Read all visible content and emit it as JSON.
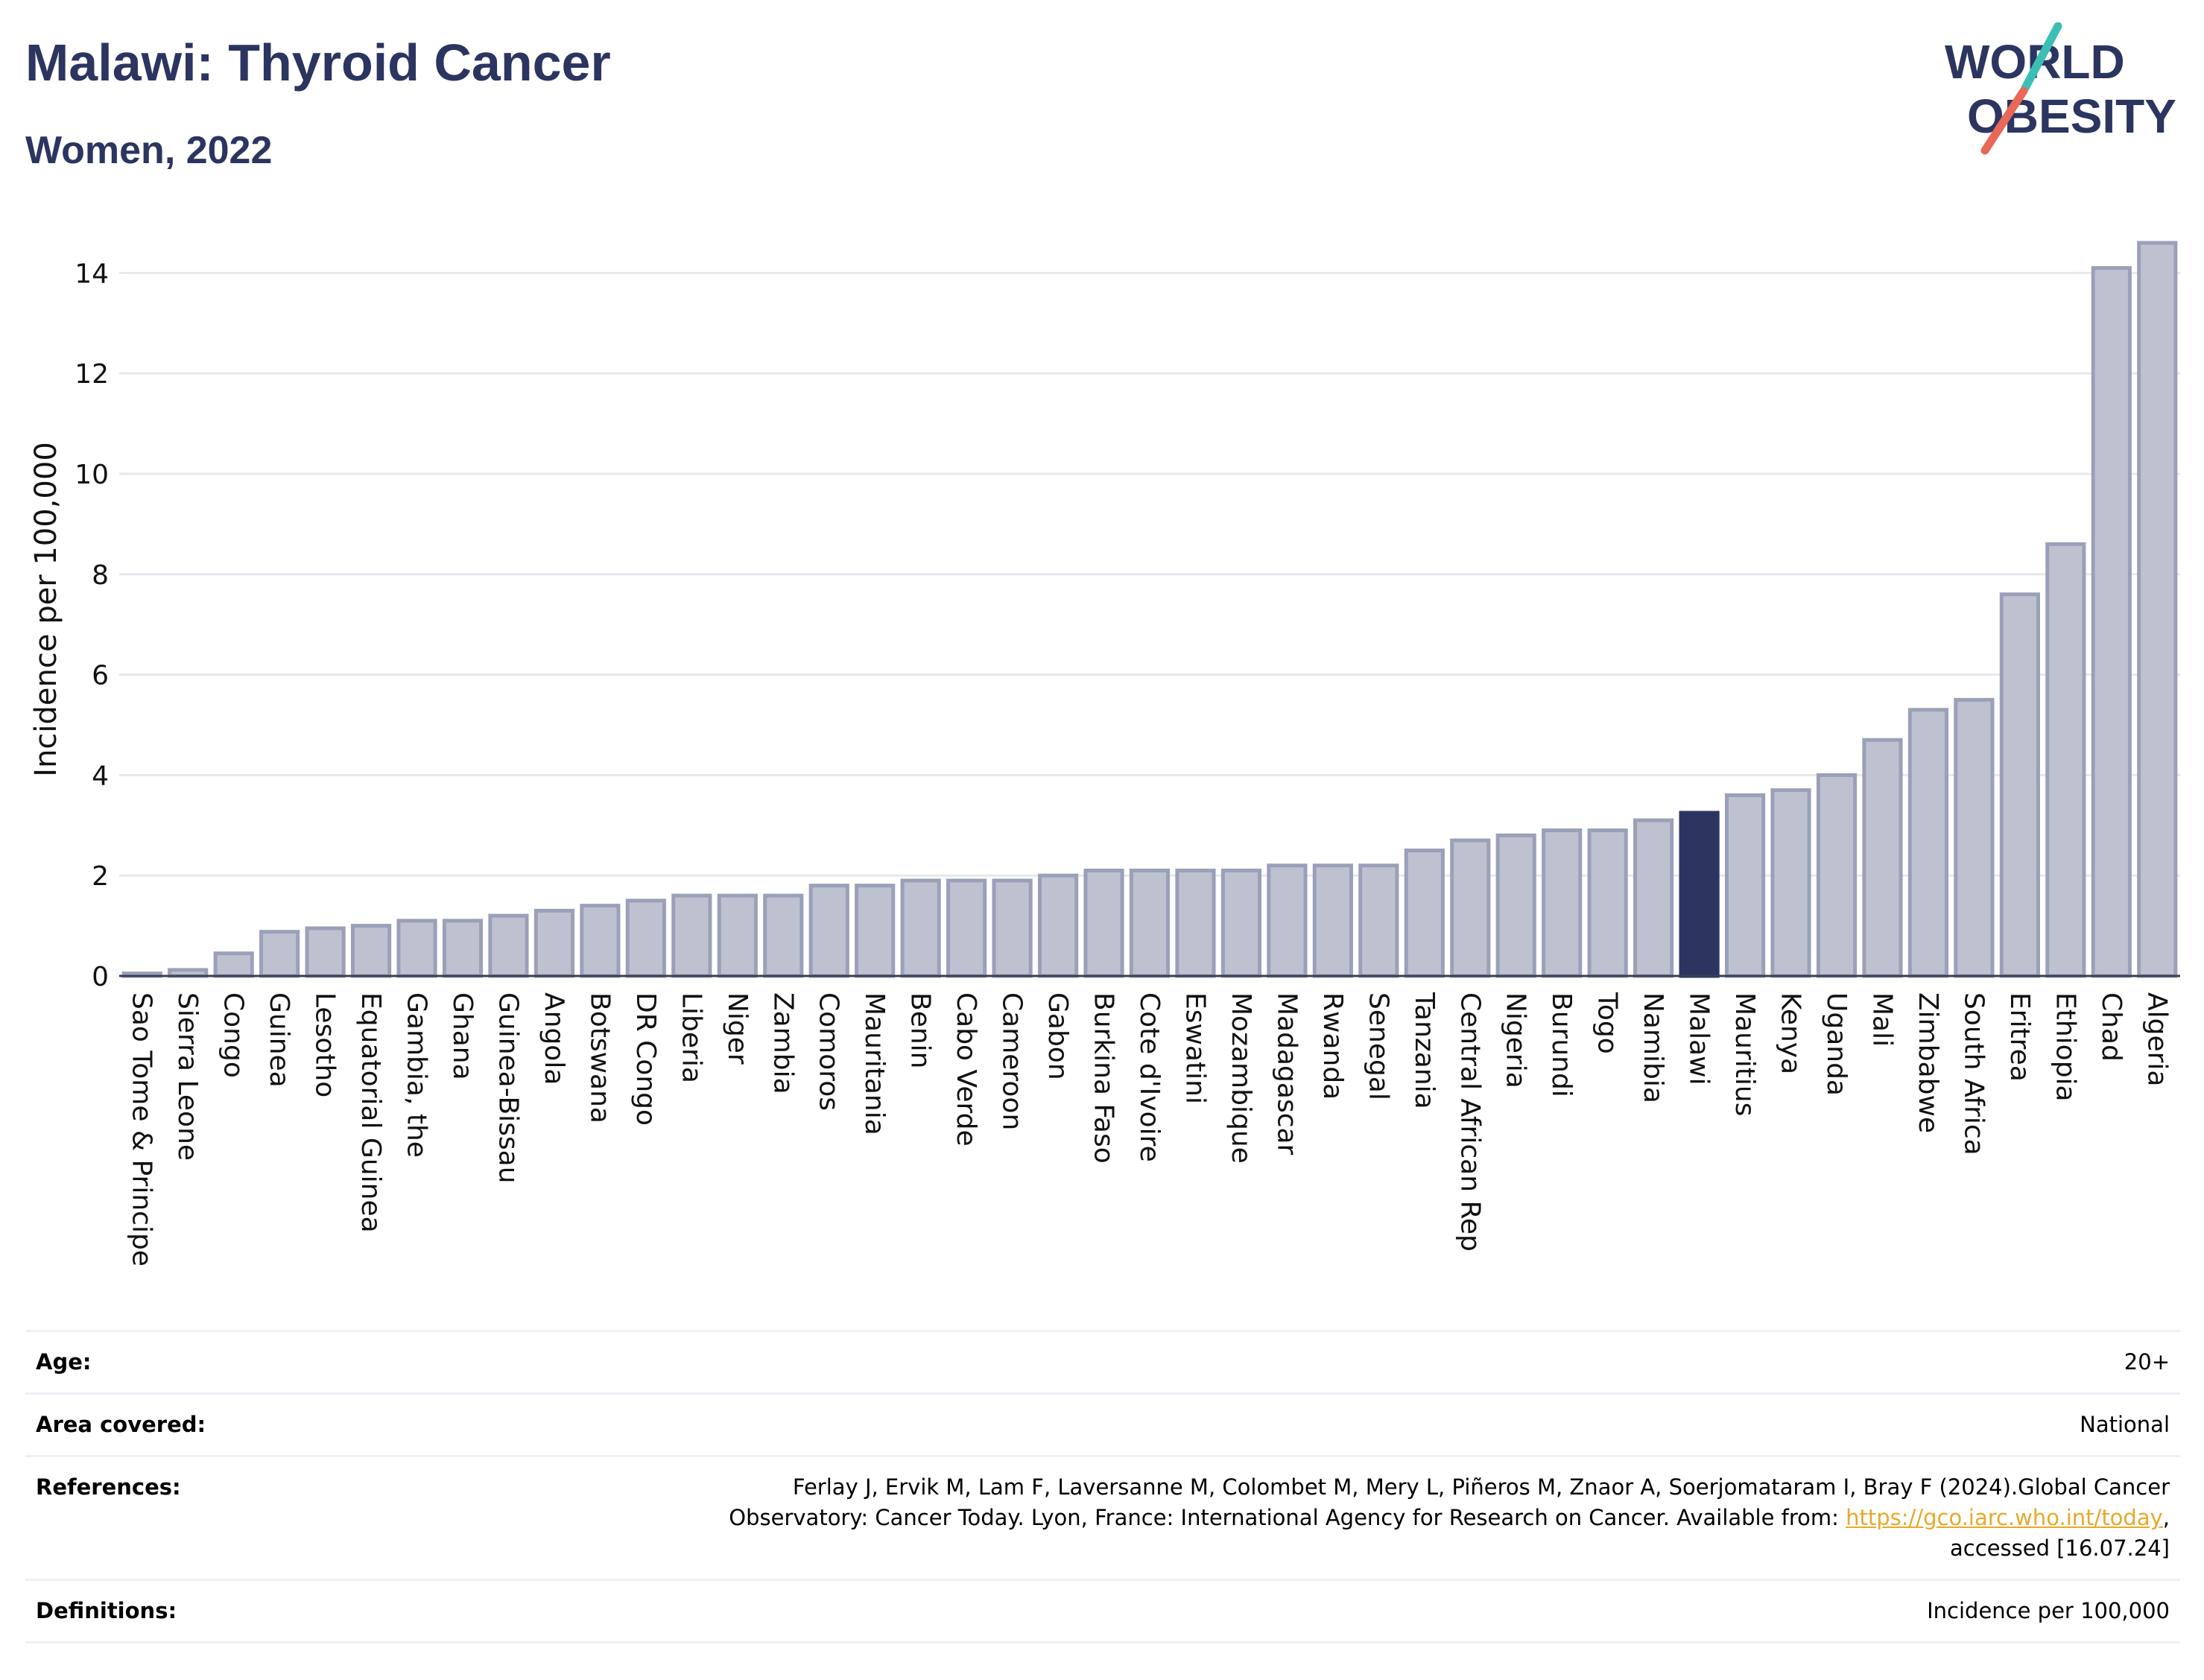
{
  "header": {
    "title": "Malawi: Thyroid Cancer",
    "subtitle": "Women, 2022"
  },
  "logo": {
    "line1": "WORLD",
    "line2": "OBESITY",
    "colors": {
      "text": "#2b3560",
      "slash_teal": "#3bbfb4",
      "slash_coral": "#e8685a"
    }
  },
  "chart_data": {
    "type": "bar",
    "ylabel": "Incidence per 100,000",
    "xlabel": "",
    "ylim": [
      0,
      14.6
    ],
    "yticks": [
      0,
      2,
      4,
      6,
      8,
      10,
      12,
      14
    ],
    "grid": true,
    "highlight": "Malawi",
    "colors": {
      "bar": "#bec2d0",
      "bar_border": "#9aa0b8",
      "highlight": "#2b3560"
    },
    "categories": [
      "Sao Tome & Principe",
      "Sierra Leone",
      "Congo",
      "Guinea",
      "Lesotho",
      "Equatorial Guinea",
      "Gambia, the",
      "Ghana",
      "Guinea-Bissau",
      "Angola",
      "Botswana",
      "DR Congo",
      "Liberia",
      "Niger",
      "Zambia",
      "Comoros",
      "Mauritania",
      "Benin",
      "Cabo Verde",
      "Cameroon",
      "Gabon",
      "Burkina Faso",
      "Cote d'Ivoire",
      "Eswatini",
      "Mozambique",
      "Madagascar",
      "Rwanda",
      "Senegal",
      "Tanzania",
      "Central African Rep",
      "Nigeria",
      "Burundi",
      "Togo",
      "Namibia",
      "Malawi",
      "Mauritius",
      "Kenya",
      "Uganda",
      "Mali",
      "Zimbabwe",
      "South Africa",
      "Eritrea",
      "Ethiopia",
      "Chad",
      "Algeria"
    ],
    "values": [
      0.05,
      0.12,
      0.45,
      0.88,
      0.95,
      1.0,
      1.1,
      1.1,
      1.2,
      1.3,
      1.4,
      1.5,
      1.6,
      1.6,
      1.6,
      1.8,
      1.8,
      1.9,
      1.9,
      1.9,
      2.0,
      2.1,
      2.1,
      2.1,
      2.1,
      2.2,
      2.2,
      2.2,
      2.5,
      2.7,
      2.8,
      2.9,
      2.9,
      3.1,
      3.25,
      3.6,
      3.7,
      4.0,
      4.7,
      5.3,
      5.5,
      7.6,
      8.6,
      14.1,
      14.6
    ]
  },
  "info": {
    "rows": [
      {
        "label": "Age:",
        "value": "20+"
      },
      {
        "label": "Area covered:",
        "value": "National"
      },
      {
        "label": "References:",
        "value_line1": "Ferlay J, Ervik M, Lam F, Laversanne M, Colombet M, Mery L, Piñeros M, Znaor A, Soerjomataram I, Bray F (2024).Global Cancer",
        "value_line2_pre": "Observatory: Cancer Today. Lyon, France: International Agency for Research on Cancer. Available from: ",
        "link": "https://gco.iarc.who.int/today",
        "value_line2_post": ",",
        "value_line3": "accessed [16.07.24]"
      },
      {
        "label": "Definitions:",
        "value": "Incidence per 100,000"
      }
    ]
  }
}
